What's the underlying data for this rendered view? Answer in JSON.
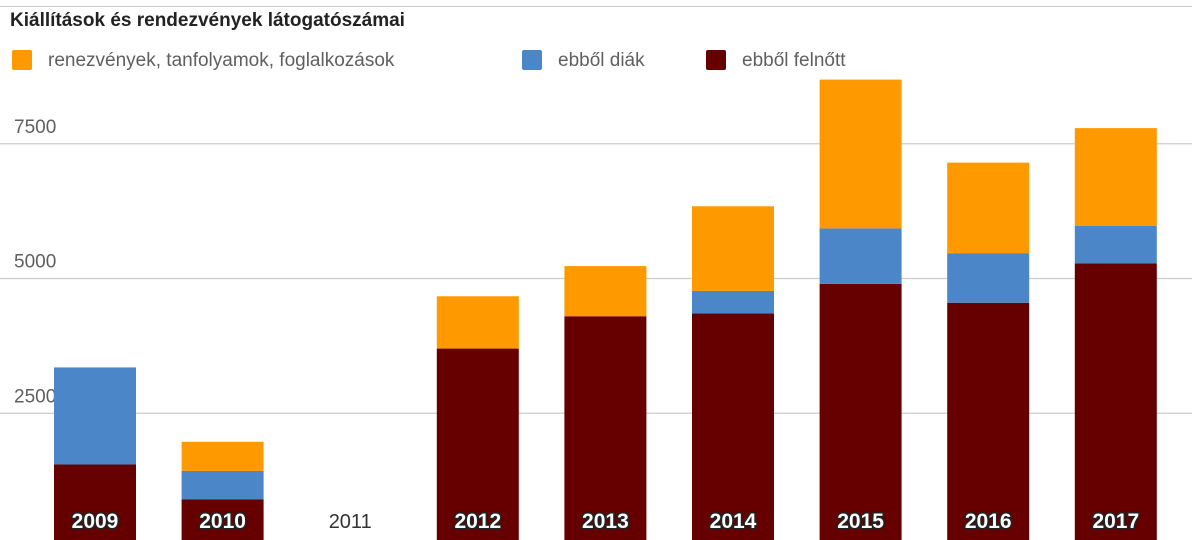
{
  "chart_data": {
    "type": "bar",
    "stacked": true,
    "title": "Kiállítások és rendezvények látogatószámai",
    "categories": [
      "2009",
      "2010",
      "2011",
      "2012",
      "2013",
      "2014",
      "2015",
      "2016",
      "2017"
    ],
    "series": [
      {
        "name": "ebből felnőtt",
        "color": "#660000",
        "values": [
          1550,
          900,
          0,
          3700,
          4300,
          4350,
          4900,
          4550,
          5280
        ]
      },
      {
        "name": "ebből diák",
        "color": "#4a86c8",
        "values": [
          1800,
          530,
          0,
          0,
          0,
          420,
          1030,
          920,
          700
        ]
      },
      {
        "name": "renezvények, tanfolyamok, foglalkozások",
        "color": "#ff9900",
        "values": [
          0,
          540,
          0,
          970,
          930,
          1570,
          2760,
          1680,
          1810
        ]
      }
    ],
    "legend_order": [
      2,
      1,
      0
    ],
    "y_ticks": [
      2500,
      5000,
      7500
    ],
    "ylim": [
      0,
      9500
    ],
    "grid": true,
    "legend_position": "top-left"
  }
}
